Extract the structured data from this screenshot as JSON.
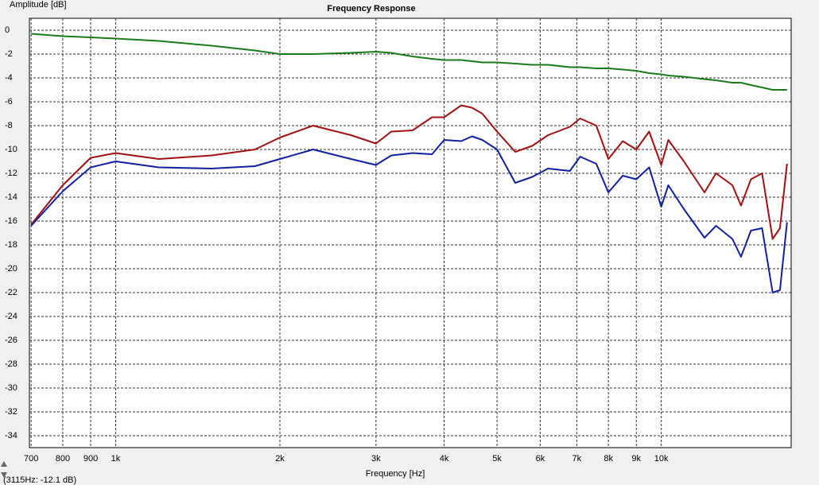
{
  "chart_data": {
    "type": "line",
    "title": "Frequency Response",
    "y_label": "Amplitude [dB]",
    "x_label": "Frequency [Hz]",
    "status": "(3115Hz: -12.1 dB)",
    "x_log": true,
    "grid": true,
    "xlim": [
      695,
      17300
    ],
    "ylim": [
      -35,
      1
    ],
    "xticks": [
      700,
      800,
      900,
      {
        "value": 1000,
        "label": "1k"
      },
      {
        "value": 2000,
        "label": "2k"
      },
      {
        "value": 3000,
        "label": "3k"
      },
      {
        "value": 4000,
        "label": "4k"
      },
      {
        "value": 5000,
        "label": "5k"
      },
      {
        "value": 6000,
        "label": "6k"
      },
      {
        "value": 7000,
        "label": "7k"
      },
      {
        "value": 8000,
        "label": "8k"
      },
      {
        "value": 9000,
        "label": "9k"
      },
      {
        "value": 10000,
        "label": "10k"
      }
    ],
    "yticks": [
      0,
      -2,
      -4,
      -6,
      -8,
      -10,
      -12,
      -14,
      -16,
      -18,
      -20,
      -22,
      -24,
      -26,
      -28,
      -30,
      -32,
      -34
    ],
    "x": [
      700,
      800,
      900,
      1000,
      1200,
      1500,
      1800,
      2000,
      2300,
      2700,
      3000,
      3200,
      3500,
      3800,
      4000,
      4300,
      4500,
      4700,
      5000,
      5400,
      5800,
      6200,
      6800,
      7100,
      7600,
      8000,
      8500,
      9000,
      9500,
      10000,
      10300,
      11000,
      12000,
      12600,
      13500,
      14000,
      14600,
      15300,
      16000,
      16500,
      17000
    ],
    "series": [
      {
        "color": "#1a7a1a",
        "values": [
          -0.3,
          -0.5,
          -0.6,
          -0.7,
          -0.9,
          -1.3,
          -1.7,
          -2,
          -2,
          -1.9,
          -1.8,
          -1.9,
          -2.2,
          -2.4,
          -2.5,
          -2.5,
          -2.6,
          -2.7,
          -2.7,
          -2.8,
          -2.9,
          -2.9,
          -3.1,
          -3.1,
          -3.2,
          -3.2,
          -3.3,
          -3.4,
          -3.6,
          -3.7,
          -3.8,
          -3.9,
          -4.1,
          -4.2,
          -4.4,
          -4.4,
          -4.6,
          -4.8,
          -5,
          -5,
          -5
        ]
      },
      {
        "color": "#a01010",
        "values": [
          -16.3,
          -13,
          -10.7,
          -10.3,
          -10.8,
          -10.5,
          -10,
          -9,
          -8,
          -8.8,
          -9.5,
          -8.5,
          -8.4,
          -7.3,
          -7.3,
          -6.3,
          -6.5,
          -7,
          -8.5,
          -10.2,
          -9.7,
          -8.8,
          -8.1,
          -7.4,
          -8,
          -10.8,
          -9.3,
          -10,
          -8.5,
          -11.3,
          -9.2,
          -11,
          -13.6,
          -12,
          -13,
          -14.7,
          -12.5,
          -12,
          -17.5,
          -16.6,
          -11.2
        ]
      },
      {
        "color": "#1020a0",
        "values": [
          -16.4,
          -13.5,
          -11.5,
          -11,
          -11.5,
          -11.6,
          -11.4,
          -10.8,
          -10,
          -10.8,
          -11.3,
          -10.5,
          -10.3,
          -10.4,
          -9.2,
          -9.3,
          -8.9,
          -9.2,
          -10,
          -12.8,
          -12.3,
          -11.6,
          -11.8,
          -10.6,
          -11.2,
          -13.6,
          -12.2,
          -12.5,
          -11.5,
          -14.8,
          -13,
          -15,
          -17.4,
          -16.4,
          -17.5,
          -19,
          -16.8,
          -16.6,
          -22,
          -21.8,
          -16.1
        ]
      }
    ]
  }
}
